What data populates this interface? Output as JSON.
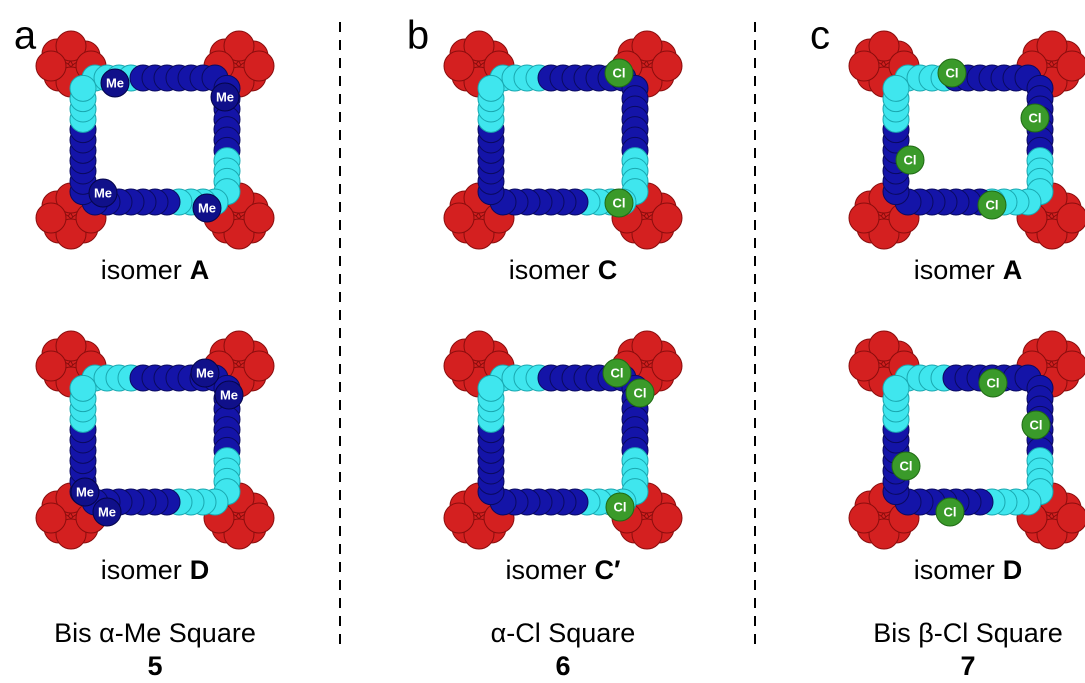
{
  "panels": [
    {
      "letter": "a",
      "isomers": [
        {
          "prefix": "isomer",
          "name": "A",
          "atoms": [
            "Me",
            "Me",
            "Me",
            "Me"
          ]
        },
        {
          "prefix": "isomer",
          "name": "D",
          "atoms": [
            "Me",
            "Me",
            "Me",
            "Me"
          ]
        }
      ],
      "title": "Bis α-Me Square",
      "number": "5"
    },
    {
      "letter": "b",
      "isomers": [
        {
          "prefix": "isomer",
          "name": "C",
          "atoms": [
            "Cl",
            "Cl"
          ]
        },
        {
          "prefix": "isomer",
          "name": "C′",
          "atoms": [
            "Cl",
            "Cl",
            "Cl"
          ]
        }
      ],
      "title": "α-Cl Square",
      "number": "6"
    },
    {
      "letter": "c",
      "isomers": [
        {
          "prefix": "isomer",
          "name": "A",
          "atoms": [
            "Cl",
            "Cl",
            "Cl",
            "Cl"
          ]
        },
        {
          "prefix": "isomer",
          "name": "D",
          "atoms": [
            "Cl",
            "Cl",
            "Cl",
            "Cl"
          ]
        }
      ],
      "title": "Bis β-Cl Square",
      "number": "7"
    }
  ]
}
